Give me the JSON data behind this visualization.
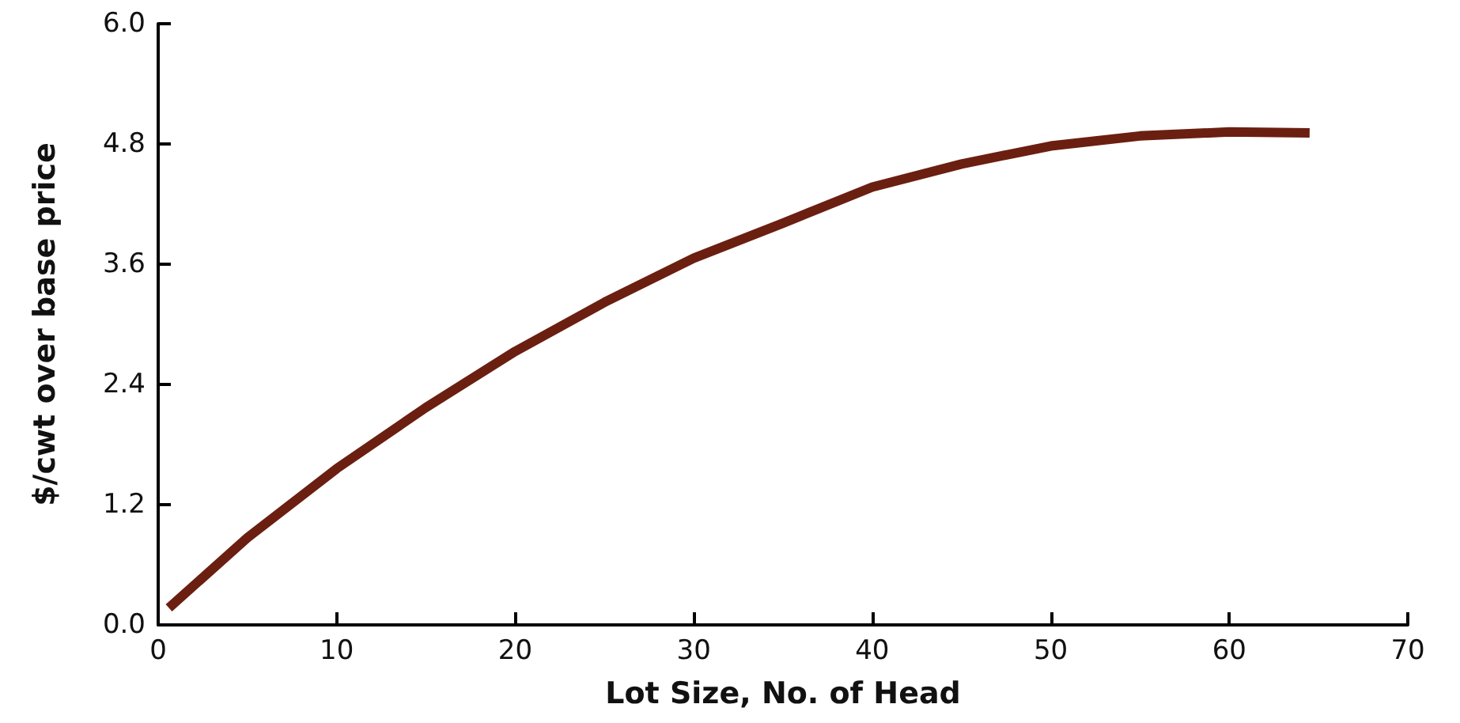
{
  "chart_data": {
    "type": "line",
    "xlabel": "Lot Size, No. of Head",
    "ylabel": "$/cwt over base price",
    "x": [
      0.6,
      5,
      10,
      15,
      20,
      25,
      30,
      35,
      40,
      45,
      50,
      55,
      60,
      64.5
    ],
    "series": [
      {
        "color": "#6b1f10",
        "values": [
          0.17,
          0.87,
          1.56,
          2.17,
          2.73,
          3.22,
          3.66,
          4.01,
          4.37,
          4.6,
          4.78,
          4.88,
          4.92,
          4.91
        ]
      }
    ],
    "xlim": [
      0,
      70
    ],
    "xticks": [
      0,
      10,
      20,
      30,
      40,
      50,
      60,
      70
    ],
    "ylim": [
      0,
      6
    ],
    "yticks": [
      {
        "value": 0,
        "label": "0.0"
      },
      {
        "value": 1.2,
        "label": "1.2"
      },
      {
        "value": 2.4,
        "label": "2.4"
      },
      {
        "value": 3.6,
        "label": "3.6"
      },
      {
        "value": 4.8,
        "label": "4.8"
      },
      {
        "value": 6,
        "label": "6.0"
      }
    ],
    "grid": false,
    "marker": "none",
    "line_style": "solid"
  }
}
